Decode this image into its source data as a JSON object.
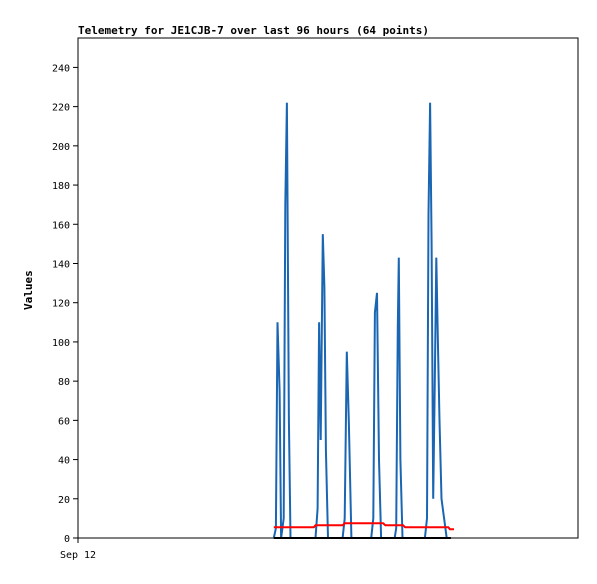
{
  "chart_data": {
    "type": "line",
    "title": "Telemetry for JE1CJB-7 over last 96 hours (64 points)",
    "ylabel": "Values",
    "xlabel": "",
    "x_tick_label": "Sep 12",
    "ylim": [
      0,
      255
    ],
    "y_ticks": [
      0,
      20,
      40,
      60,
      80,
      100,
      120,
      140,
      160,
      180,
      200,
      220,
      240
    ],
    "x_range_hours": [
      0,
      96
    ],
    "series": [
      {
        "color": "#1a66b3",
        "points": [
          [
            37.6,
            0
          ],
          [
            38.0,
            5
          ],
          [
            38.3,
            110
          ],
          [
            38.7,
            75
          ],
          [
            39.0,
            0
          ],
          [
            39.5,
            10
          ],
          [
            39.8,
            170
          ],
          [
            40.1,
            222
          ],
          [
            40.5,
            60
          ],
          [
            40.8,
            0
          ],
          [
            45.6,
            0
          ],
          [
            46.0,
            15
          ],
          [
            46.3,
            110
          ],
          [
            46.6,
            50
          ],
          [
            47.0,
            155
          ],
          [
            47.3,
            128
          ],
          [
            47.6,
            45
          ],
          [
            48.0,
            0
          ],
          [
            50.8,
            0
          ],
          [
            51.2,
            10
          ],
          [
            51.6,
            95
          ],
          [
            52.0,
            60
          ],
          [
            52.5,
            0
          ],
          [
            56.3,
            0
          ],
          [
            56.7,
            10
          ],
          [
            57.0,
            115
          ],
          [
            57.4,
            125
          ],
          [
            57.8,
            40
          ],
          [
            58.2,
            0
          ],
          [
            60.8,
            0
          ],
          [
            61.1,
            5
          ],
          [
            61.4,
            108
          ],
          [
            61.6,
            143
          ],
          [
            61.9,
            40
          ],
          [
            62.3,
            0
          ],
          [
            66.6,
            0
          ],
          [
            67.0,
            10
          ],
          [
            67.3,
            165
          ],
          [
            67.6,
            222
          ],
          [
            67.9,
            150
          ],
          [
            68.2,
            20
          ],
          [
            68.5,
            80
          ],
          [
            68.8,
            143
          ],
          [
            69.1,
            100
          ],
          [
            69.4,
            60
          ],
          [
            69.8,
            20
          ],
          [
            70.3,
            10
          ],
          [
            70.8,
            0
          ]
        ]
      },
      {
        "color": "#ff0000",
        "points": [
          [
            37.6,
            5.5
          ],
          [
            45.3,
            5.5
          ],
          [
            45.6,
            6.5
          ],
          [
            50.8,
            6.5
          ],
          [
            51.2,
            7.5
          ],
          [
            58.6,
            7.5
          ],
          [
            59.0,
            6.5
          ],
          [
            62.4,
            6.5
          ],
          [
            62.8,
            5.5
          ],
          [
            71.1,
            5.5
          ],
          [
            71.4,
            4.5
          ],
          [
            72.2,
            4.5
          ]
        ]
      },
      {
        "color": "#000000",
        "points": [
          [
            37.6,
            0
          ],
          [
            71.6,
            0
          ]
        ]
      }
    ]
  }
}
